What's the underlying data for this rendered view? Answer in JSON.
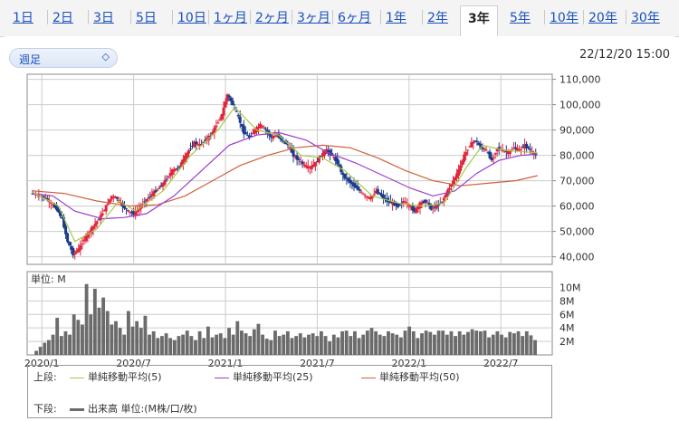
{
  "tabs": [
    {
      "label": "1日",
      "active": false
    },
    {
      "label": "2日",
      "active": false
    },
    {
      "label": "3日",
      "active": false
    },
    {
      "label": "5日",
      "active": false
    },
    {
      "label": "10日",
      "active": false
    },
    {
      "label": "1ヶ月",
      "active": false
    },
    {
      "label": "2ヶ月",
      "active": false
    },
    {
      "label": "3ヶ月",
      "active": false
    },
    {
      "label": "6ヶ月",
      "active": false
    },
    {
      "label": "1年",
      "active": false
    },
    {
      "label": "2年",
      "active": false
    },
    {
      "label": "3年",
      "active": true
    },
    {
      "label": "5年",
      "active": false
    },
    {
      "label": "10年",
      "active": false
    },
    {
      "label": "20年",
      "active": false
    },
    {
      "label": "30年",
      "active": false
    }
  ],
  "period_select": {
    "value": "週足"
  },
  "timestamp": "22/12/20 15:00",
  "colors": {
    "up": "#e0243c",
    "down": "#1c3a8c",
    "ma5": "#a8c84a",
    "ma25": "#9c3ccc",
    "ma50": "#d0603c",
    "volume": "#6b6b6b",
    "grid": "#cccccc"
  },
  "chart_data": [
    {
      "type": "candlestick",
      "x_ticks": [
        "2020/1",
        "2020/7",
        "2021/1",
        "2021/7",
        "2022/1",
        "2022/7"
      ],
      "y_ticks": [
        "40,000",
        "50,000",
        "60,000",
        "70,000",
        "80,000",
        "90,000",
        "100,000",
        "110,000"
      ],
      "ylim": [
        37000,
        112000
      ],
      "x_range": [
        "2019-12",
        "2022-12"
      ],
      "close_path": [
        [
          2019.95,
          65000
        ],
        [
          2020.0,
          64000
        ],
        [
          2020.03,
          63000
        ],
        [
          2020.06,
          61000
        ],
        [
          2020.09,
          59000
        ],
        [
          2020.12,
          55000
        ],
        [
          2020.15,
          46000
        ],
        [
          2020.18,
          41000
        ],
        [
          2020.21,
          43000
        ],
        [
          2020.24,
          47000
        ],
        [
          2020.27,
          50000
        ],
        [
          2020.3,
          53000
        ],
        [
          2020.33,
          56000
        ],
        [
          2020.36,
          60000
        ],
        [
          2020.39,
          64000
        ],
        [
          2020.42,
          63000
        ],
        [
          2020.45,
          60000
        ],
        [
          2020.48,
          58000
        ],
        [
          2020.51,
          57000
        ],
        [
          2020.54,
          59000
        ],
        [
          2020.57,
          62000
        ],
        [
          2020.6,
          64000
        ],
        [
          2020.63,
          66000
        ],
        [
          2020.66,
          68000
        ],
        [
          2020.69,
          71000
        ],
        [
          2020.72,
          74000
        ],
        [
          2020.75,
          75000
        ],
        [
          2020.78,
          78000
        ],
        [
          2020.81,
          82000
        ],
        [
          2020.84,
          85000
        ],
        [
          2020.87,
          84000
        ],
        [
          2020.9,
          86000
        ],
        [
          2020.93,
          88000
        ],
        [
          2020.96,
          92000
        ],
        [
          2020.99,
          96000
        ],
        [
          2021.02,
          104000
        ],
        [
          2021.05,
          100000
        ],
        [
          2021.08,
          95000
        ],
        [
          2021.11,
          89000
        ],
        [
          2021.14,
          87000
        ],
        [
          2021.17,
          90000
        ],
        [
          2021.2,
          92000
        ],
        [
          2021.23,
          90000
        ],
        [
          2021.26,
          87000
        ],
        [
          2021.29,
          88000
        ],
        [
          2021.32,
          86000
        ],
        [
          2021.35,
          84000
        ],
        [
          2021.38,
          80000
        ],
        [
          2021.41,
          78000
        ],
        [
          2021.44,
          76000
        ],
        [
          2021.47,
          75000
        ],
        [
          2021.5,
          77000
        ],
        [
          2021.53,
          80000
        ],
        [
          2021.56,
          82000
        ],
        [
          2021.59,
          80000
        ],
        [
          2021.62,
          77000
        ],
        [
          2021.65,
          72000
        ],
        [
          2021.68,
          70000
        ],
        [
          2021.71,
          68000
        ],
        [
          2021.74,
          66000
        ],
        [
          2021.77,
          64000
        ],
        [
          2021.8,
          63000
        ],
        [
          2021.83,
          66000
        ],
        [
          2021.86,
          64000
        ],
        [
          2021.89,
          62000
        ],
        [
          2021.92,
          61000
        ],
        [
          2021.95,
          60000
        ],
        [
          2021.98,
          62000
        ],
        [
          2022.01,
          60000
        ],
        [
          2022.04,
          58000
        ],
        [
          2022.07,
          61000
        ],
        [
          2022.1,
          62000
        ],
        [
          2022.13,
          59000
        ],
        [
          2022.16,
          60000
        ],
        [
          2022.19,
          62000
        ],
        [
          2022.22,
          66000
        ],
        [
          2022.25,
          70000
        ],
        [
          2022.28,
          74000
        ],
        [
          2022.31,
          80000
        ],
        [
          2022.34,
          84000
        ],
        [
          2022.37,
          86000
        ],
        [
          2022.4,
          83000
        ],
        [
          2022.43,
          82000
        ],
        [
          2022.46,
          78000
        ],
        [
          2022.49,
          83000
        ],
        [
          2022.52,
          82000
        ],
        [
          2022.55,
          81000
        ],
        [
          2022.58,
          83000
        ],
        [
          2022.61,
          82000
        ],
        [
          2022.64,
          84000
        ],
        [
          2022.67,
          82000
        ],
        [
          2022.7,
          80000
        ]
      ],
      "ma5": [
        [
          2019.95,
          65500
        ],
        [
          2020.09,
          60000
        ],
        [
          2020.18,
          46000
        ],
        [
          2020.3,
          51000
        ],
        [
          2020.42,
          62000
        ],
        [
          2020.51,
          58000
        ],
        [
          2020.66,
          66000
        ],
        [
          2020.81,
          80000
        ],
        [
          2020.96,
          90000
        ],
        [
          2021.05,
          99000
        ],
        [
          2021.17,
          90000
        ],
        [
          2021.29,
          88000
        ],
        [
          2021.41,
          80000
        ],
        [
          2021.53,
          79000
        ],
        [
          2021.65,
          74000
        ],
        [
          2021.8,
          64000
        ],
        [
          2021.95,
          61000
        ],
        [
          2022.07,
          60000
        ],
        [
          2022.19,
          61000
        ],
        [
          2022.31,
          75000
        ],
        [
          2022.4,
          84000
        ],
        [
          2022.52,
          82000
        ],
        [
          2022.7,
          81000
        ]
      ],
      "ma25": [
        [
          2019.95,
          65000
        ],
        [
          2020.06,
          64000
        ],
        [
          2020.18,
          58000
        ],
        [
          2020.33,
          55000
        ],
        [
          2020.45,
          55500
        ],
        [
          2020.57,
          57000
        ],
        [
          2020.72,
          64000
        ],
        [
          2020.87,
          74000
        ],
        [
          2021.02,
          84000
        ],
        [
          2021.17,
          88000
        ],
        [
          2021.29,
          89000
        ],
        [
          2021.44,
          86000
        ],
        [
          2021.56,
          81000
        ],
        [
          2021.71,
          77000
        ],
        [
          2021.86,
          72000
        ],
        [
          2022.01,
          67000
        ],
        [
          2022.13,
          64000
        ],
        [
          2022.25,
          66000
        ],
        [
          2022.37,
          73000
        ],
        [
          2022.49,
          78000
        ],
        [
          2022.61,
          80000
        ],
        [
          2022.7,
          80500
        ]
      ],
      "ma50": [
        [
          2019.95,
          66000
        ],
        [
          2020.12,
          65000
        ],
        [
          2020.3,
          62000
        ],
        [
          2020.48,
          60000
        ],
        [
          2020.63,
          60500
        ],
        [
          2020.78,
          64000
        ],
        [
          2020.93,
          70000
        ],
        [
          2021.08,
          76000
        ],
        [
          2021.23,
          80000
        ],
        [
          2021.38,
          83000
        ],
        [
          2021.53,
          84000
        ],
        [
          2021.68,
          83000
        ],
        [
          2021.83,
          79000
        ],
        [
          2021.98,
          74000
        ],
        [
          2022.13,
          70000
        ],
        [
          2022.28,
          68000
        ],
        [
          2022.43,
          69000
        ],
        [
          2022.58,
          70000
        ],
        [
          2022.7,
          72000
        ]
      ]
    },
    {
      "type": "bar",
      "unit_label": "単位: M",
      "y_ticks": [
        "10M",
        "8M",
        "6M",
        "4M",
        "2M"
      ],
      "ylim": [
        0,
        11
      ],
      "values": [
        0.6,
        1.2,
        1.8,
        2.2,
        3.0,
        5.5,
        2.8,
        3.5,
        3.0,
        6.0,
        5.2,
        4.5,
        10.5,
        6.0,
        9.8,
        7.0,
        8.5,
        6.5,
        4.5,
        5.0,
        4.0,
        3.0,
        6.5,
        4.2,
        5.0,
        4.0,
        5.8,
        3.0,
        3.5,
        2.5,
        2.8,
        3.2,
        2.5,
        2.2,
        2.8,
        3.0,
        3.6,
        2.8,
        2.2,
        3.5,
        2.5,
        4.2,
        2.6,
        3.0,
        3.2,
        2.5,
        4.0,
        3.0,
        5.0,
        3.6,
        3.2,
        2.8,
        3.8,
        4.6,
        3.0,
        2.4,
        2.2,
        3.6,
        2.8,
        3.0,
        3.5,
        2.5,
        2.8,
        3.2,
        2.6,
        3.0,
        3.2,
        2.8,
        3.5,
        2.8,
        2.0,
        3.0,
        2.6,
        3.5,
        3.6,
        2.8,
        3.5,
        2.5,
        3.0,
        3.6,
        4.0,
        3.5,
        3.0,
        2.8,
        3.5,
        3.2,
        3.0,
        2.6,
        3.6,
        4.2,
        3.5,
        2.5,
        3.2,
        3.6,
        3.4,
        3.0,
        3.6,
        3.6,
        3.0,
        3.5,
        2.8,
        3.5,
        3.0,
        3.4,
        3.8,
        3.6,
        3.5,
        3.6,
        2.6,
        3.0,
        3.5,
        3.0,
        2.6,
        3.4,
        3.2,
        3.5,
        2.8,
        3.5,
        2.9,
        2.2
      ]
    }
  ],
  "legend": {
    "upper_label": "上段:",
    "lower_label": "下段:",
    "items": [
      {
        "label": "単純移動平均(5)",
        "color": "#a8c84a"
      },
      {
        "label": "単純移動平均(25)",
        "color": "#9c3ccc"
      },
      {
        "label": "単純移動平均(50)",
        "color": "#d0603c"
      }
    ],
    "volume_label": "出来高 単位:(M株/口/枚)"
  }
}
